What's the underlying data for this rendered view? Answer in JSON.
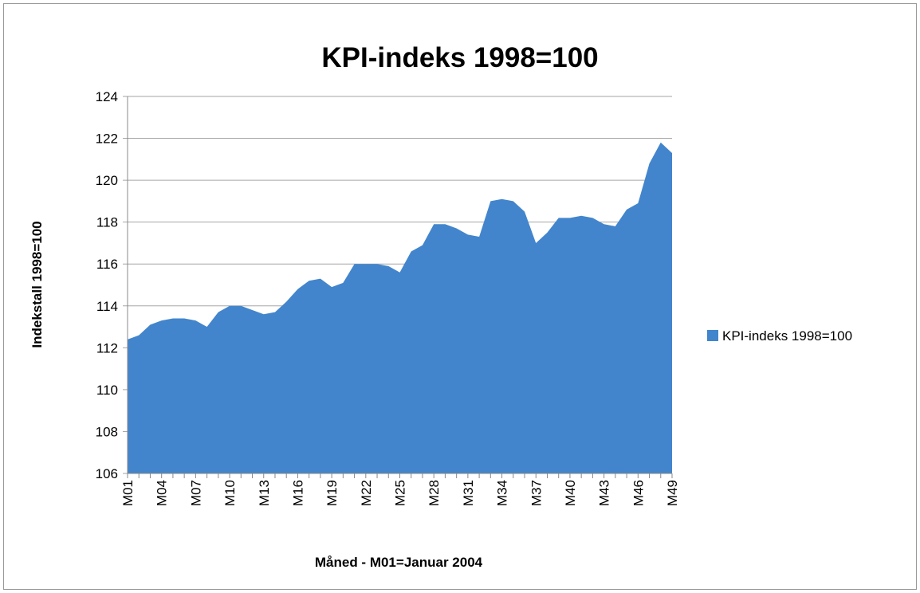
{
  "chart_data": {
    "type": "area",
    "title": "KPI-indeks 1998=100",
    "x_label": "Måned - M01=Januar 2004",
    "y_label": "Indekstall 1998=100",
    "categories": [
      "M01",
      null,
      null,
      "M04",
      null,
      null,
      "M07",
      null,
      null,
      "M10",
      null,
      null,
      "M13",
      null,
      null,
      "M16",
      null,
      null,
      "M19",
      null,
      null,
      "M22",
      null,
      null,
      "M25",
      null,
      null,
      "M28",
      null,
      null,
      "M31",
      null,
      null,
      "M34",
      null,
      null,
      "M37",
      null,
      null,
      "M40",
      null,
      null,
      "M43",
      null,
      null,
      "M46",
      null,
      null,
      "M49"
    ],
    "series": [
      {
        "name": "KPI-indeks 1998=100",
        "color": "#4285cc",
        "values": [
          112.4,
          112.6,
          113.1,
          113.3,
          113.4,
          113.4,
          113.3,
          113.0,
          113.7,
          114.0,
          114.0,
          113.8,
          113.6,
          113.7,
          114.2,
          114.8,
          115.2,
          115.3,
          114.9,
          115.1,
          116.0,
          116.0,
          116.0,
          115.9,
          115.6,
          116.6,
          116.9,
          117.9,
          117.9,
          117.7,
          117.4,
          117.3,
          119.0,
          119.1,
          119.0,
          118.5,
          117.0,
          117.5,
          118.2,
          118.2,
          118.3,
          118.2,
          117.9,
          117.8,
          118.6,
          118.9,
          120.8,
          121.8,
          121.3
        ]
      }
    ],
    "ylim": [
      106,
      124
    ],
    "yticks": [
      106,
      108,
      110,
      112,
      114,
      116,
      118,
      120,
      122,
      124
    ],
    "grid": true,
    "legend": "right"
  }
}
